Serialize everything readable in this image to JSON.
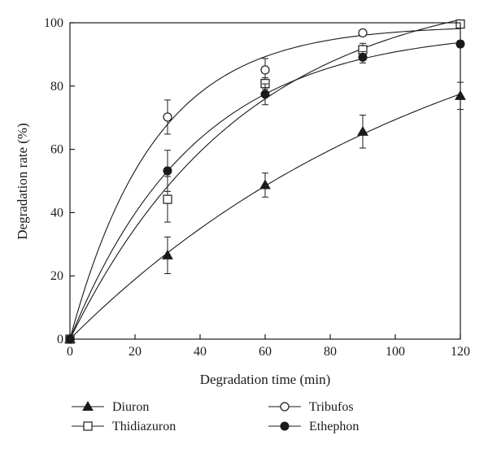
{
  "chart_data": {
    "type": "scatter",
    "xlabel": "Degradation time (min)",
    "ylabel": "Degradation rate (%)",
    "xlim": [
      0,
      120
    ],
    "ylim": [
      0,
      100
    ],
    "x_ticks": [
      0,
      20,
      40,
      60,
      80,
      100,
      120
    ],
    "y_ticks": [
      0,
      20,
      40,
      60,
      80,
      100
    ],
    "grid": false,
    "legend_position": "bottom",
    "fitted_curves": true,
    "series": [
      {
        "name": "Diuron",
        "marker": "filled-triangle",
        "x": [
          0,
          30,
          60,
          90,
          120
        ],
        "values": [
          0,
          26.5,
          48.7,
          65.6,
          76.9
        ],
        "error": [
          0,
          5.8,
          3.8,
          5.2,
          4.3
        ]
      },
      {
        "name": "Tribufos",
        "marker": "open-circle",
        "x": [
          0,
          30,
          60,
          90,
          120
        ],
        "values": [
          0,
          70.2,
          85.1,
          96.8,
          99.6
        ],
        "error": [
          0,
          5.4,
          3.6,
          0.8,
          0.5
        ]
      },
      {
        "name": "Thidiazuron",
        "marker": "open-square",
        "x": [
          0,
          30,
          60,
          90,
          120
        ],
        "values": [
          0,
          44.2,
          80.8,
          91.5,
          99.6
        ],
        "error": [
          0,
          7.2,
          1.8,
          2.0,
          0.6
        ]
      },
      {
        "name": "Ethephon",
        "marker": "filled-circle",
        "x": [
          0,
          30,
          60,
          90,
          120
        ],
        "values": [
          0,
          53.2,
          77.4,
          89.1,
          93.3
        ],
        "error": [
          0,
          6.5,
          3.3,
          1.8,
          1.0
        ]
      }
    ]
  }
}
